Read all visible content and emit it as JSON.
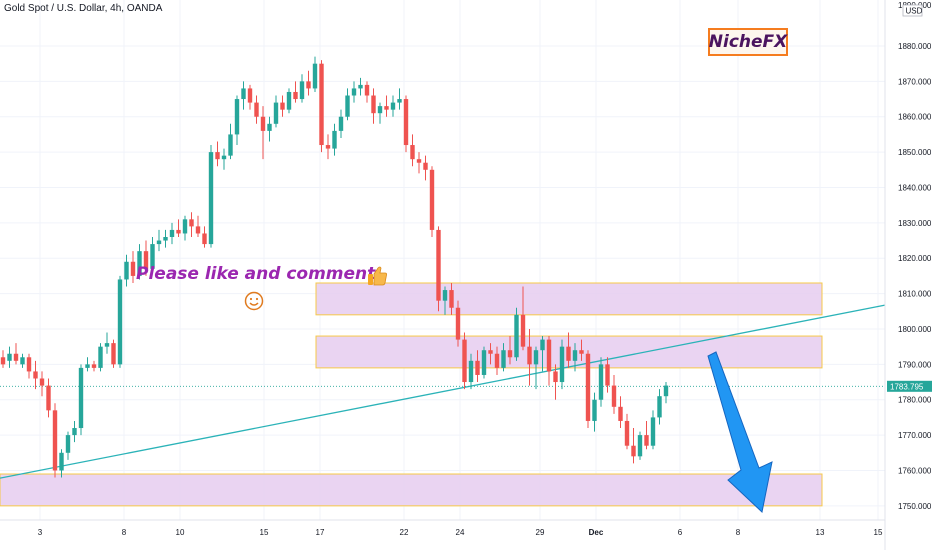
{
  "title": "Gold Spot / U.S. Dollar, 4h, OANDA",
  "brand": "NicheFX",
  "note": "Please like and comment",
  "currency": "USD",
  "current_price": "1783.795",
  "colors": {
    "up": "#26a69a",
    "down": "#ef5350",
    "zone_fill": "#e6cdf0",
    "zone_border": "#f7c948",
    "trendline": "#2bb3b8",
    "arrow": "#1e88e5",
    "brand_border": "#f57c1f",
    "brand_text": "#4b1460",
    "note_text": "#9b27b0"
  },
  "icons": [
    "thumbs-up-icon",
    "smile-icon",
    "arrow-down-icon"
  ],
  "chart_data": {
    "type": "candlestick",
    "title": "Gold Spot / U.S. Dollar, 4h, OANDA",
    "y_ticks": [
      "1750.000",
      "1760.000",
      "1770.000",
      "1780.000",
      "1790.000",
      "1800.000",
      "1810.000",
      "1820.000",
      "1830.000",
      "1840.000",
      "1850.000",
      "1860.000",
      "1870.000",
      "1880.000"
    ],
    "y_top_partial": "1890.000",
    "ylim": [
      1746,
      1893
    ],
    "x_ticks": [
      "3",
      "8",
      "10",
      "15",
      "17",
      "22",
      "24",
      "29",
      "Dec",
      "6",
      "8",
      "13",
      "15"
    ],
    "series": [
      {
        "ohlc": [
          [
            1792,
            1794,
            1789,
            1790
          ],
          [
            1791,
            1795,
            1789,
            1793
          ],
          [
            1793,
            1796,
            1790,
            1791
          ],
          [
            1790,
            1793,
            1789,
            1792
          ],
          [
            1792,
            1793,
            1786,
            1788
          ],
          [
            1788,
            1791,
            1783,
            1786
          ],
          [
            1786,
            1788,
            1781,
            1784
          ],
          [
            1784,
            1786,
            1775,
            1777
          ],
          [
            1777,
            1779,
            1758,
            1760
          ],
          [
            1760,
            1766,
            1758,
            1765
          ],
          [
            1765,
            1771,
            1763,
            1770
          ],
          [
            1770,
            1774,
            1768,
            1772
          ],
          [
            1772,
            1790,
            1770,
            1789
          ],
          [
            1789,
            1792,
            1788,
            1790
          ],
          [
            1790,
            1791,
            1788,
            1789
          ],
          [
            1789,
            1796,
            1788,
            1795
          ],
          [
            1795,
            1799,
            1793,
            1796
          ],
          [
            1796,
            1797,
            1789,
            1790
          ],
          [
            1790,
            1815,
            1789,
            1814
          ],
          [
            1814,
            1821,
            1812,
            1819
          ],
          [
            1819,
            1822,
            1813,
            1815
          ],
          [
            1815,
            1824,
            1814,
            1822
          ],
          [
            1822,
            1825,
            1815,
            1817
          ],
          [
            1817,
            1826,
            1816,
            1824
          ],
          [
            1824,
            1828,
            1822,
            1825
          ],
          [
            1825,
            1828,
            1823,
            1826
          ],
          [
            1826,
            1830,
            1824,
            1828
          ],
          [
            1828,
            1831,
            1826,
            1827
          ],
          [
            1827,
            1832,
            1825,
            1831
          ],
          [
            1831,
            1833,
            1826,
            1829
          ],
          [
            1829,
            1832,
            1826,
            1827
          ],
          [
            1827,
            1829,
            1823,
            1824
          ],
          [
            1824,
            1852,
            1823,
            1850
          ],
          [
            1850,
            1853,
            1846,
            1848
          ],
          [
            1848,
            1851,
            1845,
            1849
          ],
          [
            1849,
            1858,
            1848,
            1855
          ],
          [
            1855,
            1866,
            1852,
            1865
          ],
          [
            1865,
            1870,
            1862,
            1868
          ],
          [
            1868,
            1869,
            1862,
            1864
          ],
          [
            1864,
            1866,
            1858,
            1860
          ],
          [
            1860,
            1863,
            1848,
            1856
          ],
          [
            1856,
            1860,
            1853,
            1858
          ],
          [
            1858,
            1866,
            1857,
            1864
          ],
          [
            1864,
            1866,
            1860,
            1862
          ],
          [
            1862,
            1868,
            1861,
            1867
          ],
          [
            1867,
            1870,
            1864,
            1865
          ],
          [
            1865,
            1872,
            1864,
            1870
          ],
          [
            1870,
            1873,
            1866,
            1868
          ],
          [
            1868,
            1877,
            1867,
            1875
          ],
          [
            1875,
            1876,
            1850,
            1852
          ],
          [
            1852,
            1855,
            1848,
            1851
          ],
          [
            1851,
            1858,
            1849,
            1856
          ],
          [
            1856,
            1862,
            1854,
            1860
          ],
          [
            1860,
            1868,
            1859,
            1866
          ],
          [
            1866,
            1870,
            1864,
            1868
          ],
          [
            1868,
            1871,
            1866,
            1869
          ],
          [
            1869,
            1870,
            1864,
            1866
          ],
          [
            1866,
            1868,
            1858,
            1861
          ],
          [
            1861,
            1864,
            1858,
            1863
          ],
          [
            1863,
            1866,
            1860,
            1862
          ],
          [
            1862,
            1866,
            1860,
            1864
          ],
          [
            1864,
            1868,
            1862,
            1865
          ],
          [
            1865,
            1866,
            1850,
            1852
          ],
          [
            1852,
            1855,
            1846,
            1848
          ],
          [
            1848,
            1850,
            1844,
            1847
          ],
          [
            1847,
            1849,
            1842,
            1845
          ],
          [
            1845,
            1846,
            1826,
            1828
          ],
          [
            1828,
            1829,
            1805,
            1808
          ],
          [
            1808,
            1812,
            1804,
            1811
          ],
          [
            1811,
            1813,
            1804,
            1806
          ],
          [
            1806,
            1808,
            1795,
            1797
          ],
          [
            1797,
            1799,
            1783,
            1785
          ],
          [
            1785,
            1793,
            1783,
            1791
          ],
          [
            1791,
            1794,
            1785,
            1787
          ],
          [
            1787,
            1795,
            1786,
            1794
          ],
          [
            1794,
            1796,
            1790,
            1793
          ],
          [
            1793,
            1795,
            1787,
            1789
          ],
          [
            1789,
            1796,
            1788,
            1794
          ],
          [
            1794,
            1798,
            1790,
            1792
          ],
          [
            1792,
            1806,
            1791,
            1804
          ],
          [
            1804,
            1812,
            1794,
            1795
          ],
          [
            1795,
            1800,
            1784,
            1790
          ],
          [
            1790,
            1795,
            1783,
            1794
          ],
          [
            1794,
            1798,
            1788,
            1797
          ],
          [
            1797,
            1798,
            1784,
            1788
          ],
          [
            1788,
            1790,
            1780,
            1785
          ],
          [
            1785,
            1797,
            1783,
            1795
          ],
          [
            1795,
            1799,
            1789,
            1791
          ],
          [
            1791,
            1796,
            1788,
            1794
          ],
          [
            1794,
            1797,
            1791,
            1793
          ],
          [
            1793,
            1794,
            1772,
            1774
          ],
          [
            1774,
            1782,
            1771,
            1780
          ],
          [
            1780,
            1792,
            1778,
            1790
          ],
          [
            1790,
            1792,
            1782,
            1784
          ],
          [
            1784,
            1787,
            1776,
            1778
          ],
          [
            1778,
            1781,
            1772,
            1774
          ],
          [
            1774,
            1776,
            1766,
            1767
          ],
          [
            1767,
            1772,
            1762,
            1764
          ],
          [
            1764,
            1771,
            1763,
            1770
          ],
          [
            1770,
            1774,
            1766,
            1767
          ],
          [
            1767,
            1777,
            1766,
            1775
          ],
          [
            1775,
            1783,
            1773,
            1781
          ],
          [
            1781,
            1785,
            1779,
            1784
          ]
        ]
      }
    ],
    "zones": [
      [
        1804,
        1813
      ],
      [
        1789,
        1798
      ],
      [
        1750,
        1759
      ]
    ],
    "trendline": {
      "from": [
        0,
        1758
      ],
      "to": [
        103,
        1795
      ]
    },
    "current_price": 1783.795
  }
}
